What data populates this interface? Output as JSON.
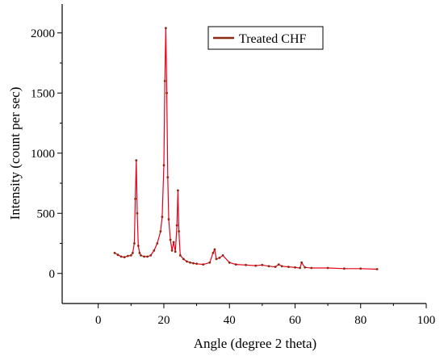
{
  "chart_data": {
    "type": "line",
    "xlabel": "Angle (degree 2 theta)",
    "ylabel": "Intensity (count per sec)",
    "xlim": [
      -11,
      100
    ],
    "ylim": [
      -250,
      2240
    ],
    "xticks": [
      0,
      20,
      40,
      60,
      80,
      100
    ],
    "yticks": [
      0,
      500,
      1000,
      1500,
      2000
    ],
    "legend_position": "top-right",
    "series": [
      {
        "name": "Treated CHF",
        "line_color": "#e8001a",
        "marker_color": "#8a2a10",
        "x": [
          5,
          6,
          7,
          8,
          9,
          10,
          10.5,
          11,
          11.3,
          11.6,
          11.9,
          12.2,
          12.6,
          13,
          14,
          15,
          16,
          17,
          18,
          19,
          19.5,
          20,
          20.3,
          20.6,
          20.9,
          21.2,
          21.5,
          22,
          22.5,
          23,
          23.5,
          24,
          24.3,
          24.6,
          25,
          26,
          27,
          28,
          29,
          30,
          32,
          34,
          35,
          35.5,
          36,
          37,
          38,
          40,
          42,
          45,
          48,
          50,
          52,
          54,
          55,
          56,
          58,
          60,
          61.5,
          62,
          63,
          65,
          70,
          75,
          80,
          85
        ],
        "y": [
          170,
          155,
          140,
          135,
          145,
          150,
          170,
          250,
          620,
          940,
          500,
          230,
          170,
          150,
          140,
          140,
          150,
          190,
          250,
          350,
          470,
          900,
          1600,
          2040,
          1500,
          800,
          450,
          280,
          190,
          260,
          180,
          400,
          690,
          350,
          150,
          120,
          100,
          90,
          85,
          80,
          75,
          90,
          170,
          200,
          120,
          130,
          150,
          90,
          75,
          70,
          65,
          70,
          60,
          55,
          75,
          60,
          55,
          50,
          45,
          90,
          50,
          45,
          45,
          40,
          40,
          35
        ]
      }
    ]
  }
}
